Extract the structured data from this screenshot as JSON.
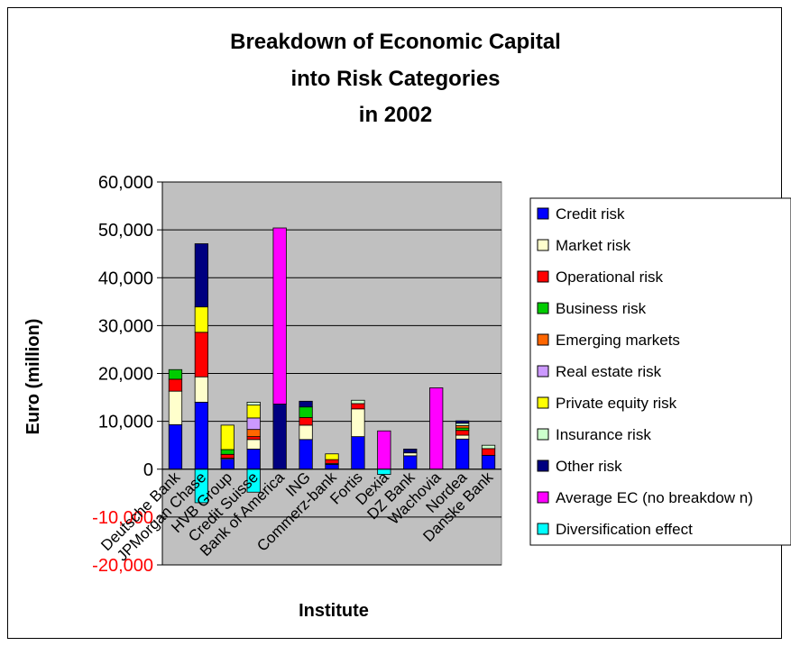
{
  "chart_data": {
    "type": "bar",
    "stacked": true,
    "title_lines": [
      "Breakdown of Economic Capital",
      "into Risk Categories",
      "in 2002"
    ],
    "xlabel": "Institute",
    "ylabel": "Euro (million)",
    "ylim": [
      -20000,
      60000
    ],
    "y_ticks": [
      "60,000",
      "50,000",
      "40,000",
      "30,000",
      "20,000",
      "10,000",
      "0",
      "-10,000",
      "-20,000"
    ],
    "y_tick_values": [
      60000,
      50000,
      40000,
      30000,
      20000,
      10000,
      0,
      -10000,
      -20000
    ],
    "negative_tick_color": "#ff0000",
    "plot_background": "#c0c0c0",
    "legend_position": "right",
    "categories": [
      "Deutsche Bank",
      "JPMorgan Chase",
      "HVB Group",
      "Credit Suisse",
      "Bank of America",
      "ING",
      "Commerz-bank",
      "Fortis",
      "Dexia",
      "DZ Bank",
      "Wachovia",
      "Nordea",
      "Danske Bank"
    ],
    "series": [
      {
        "name": "Credit risk",
        "color": "#0000ff",
        "values": [
          9300,
          14000,
          2100,
          4200,
          0,
          6200,
          1000,
          6800,
          0,
          2800,
          0,
          6300,
          2900
        ]
      },
      {
        "name": "Market risk",
        "color": "#ffffcc",
        "values": [
          7000,
          5300,
          200,
          2000,
          0,
          3000,
          200,
          5800,
          0,
          600,
          0,
          800,
          0
        ]
      },
      {
        "name": "Operational risk",
        "color": "#ff0000",
        "values": [
          2500,
          9300,
          800,
          600,
          0,
          1600,
          800,
          1100,
          0,
          0,
          0,
          1000,
          1400
        ]
      },
      {
        "name": "Business risk",
        "color": "#00cc00",
        "values": [
          2000,
          0,
          1000,
          0,
          0,
          2200,
          0,
          0,
          0,
          0,
          0,
          500,
          0
        ]
      },
      {
        "name": "Emerging markets",
        "color": "#ff6600",
        "values": [
          0,
          0,
          0,
          1500,
          0,
          0,
          0,
          0,
          0,
          0,
          0,
          500,
          0
        ]
      },
      {
        "name": "Real estate risk",
        "color": "#cc99ff",
        "values": [
          0,
          0,
          0,
          2400,
          0,
          0,
          0,
          0,
          0,
          0,
          0,
          0,
          0
        ]
      },
      {
        "name": "Private equity risk",
        "color": "#ffff00",
        "values": [
          0,
          5300,
          5100,
          2700,
          0,
          0,
          1200,
          0,
          0,
          0,
          0,
          0,
          0
        ]
      },
      {
        "name": "Insurance risk",
        "color": "#ccffcc",
        "values": [
          0,
          0,
          0,
          600,
          0,
          0,
          0,
          700,
          0,
          0,
          0,
          500,
          700
        ]
      },
      {
        "name": "Other risk",
        "color": "#000080",
        "values": [
          0,
          13200,
          0,
          0,
          13600,
          1200,
          0,
          0,
          0,
          800,
          0,
          500,
          0
        ]
      },
      {
        "name": "Average EC (no breakdow n)",
        "color": "#ff00ff",
        "values": [
          0,
          0,
          0,
          0,
          36800,
          0,
          0,
          0,
          8000,
          0,
          17000,
          0,
          0
        ]
      },
      {
        "name": "Diversification effect",
        "color": "#00ffff",
        "values": [
          0,
          -7000,
          0,
          -4800,
          0,
          0,
          0,
          0,
          -1100,
          0,
          0,
          0,
          0
        ]
      }
    ]
  }
}
